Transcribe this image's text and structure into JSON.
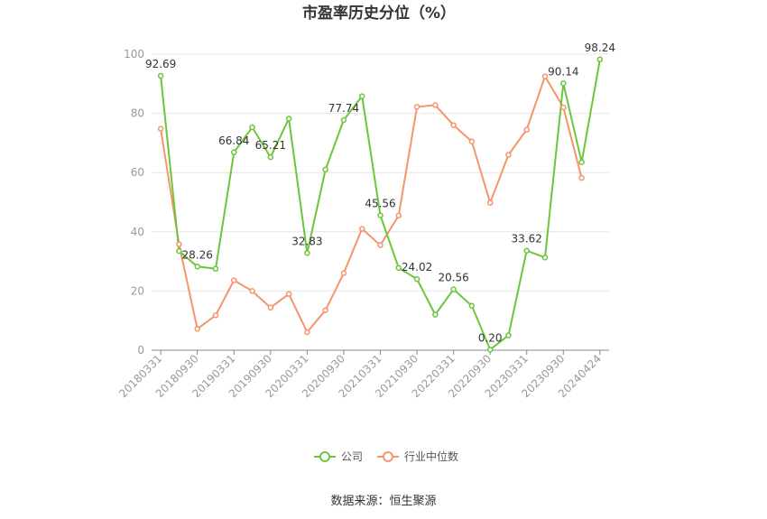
{
  "chart_data": {
    "type": "line",
    "title": "市盈率历史分位（%）",
    "xlabel": "",
    "ylabel": "",
    "ylim": [
      0,
      100
    ],
    "yticks": [
      0,
      20,
      40,
      60,
      80,
      100
    ],
    "grid": true,
    "legend_position": "bottom",
    "x": [
      "20180331",
      "20180630",
      "20180930",
      "20181231",
      "20190331",
      "20190630",
      "20190930",
      "20191231",
      "20200331",
      "20200630",
      "20200930",
      "20201231",
      "20210331",
      "20210630",
      "20210930",
      "20211231",
      "20220331",
      "20220630",
      "20220930",
      "20221231",
      "20230331",
      "20230630",
      "20230930",
      "20231231",
      "20240424"
    ],
    "xtick_labels": [
      "20180331",
      "20180930",
      "20190331",
      "20190930",
      "20200331",
      "20200930",
      "20210331",
      "20210930",
      "20220331",
      "20220930",
      "20230331",
      "20230930",
      "20240424"
    ],
    "xtick_indices": [
      0,
      2,
      4,
      6,
      8,
      10,
      12,
      14,
      16,
      18,
      20,
      22,
      24
    ],
    "series": [
      {
        "name": "公司",
        "color": "#6bc63c",
        "values": [
          92.69,
          33.5,
          28.26,
          27.5,
          66.84,
          75.3,
          65.21,
          78.2,
          32.83,
          61.0,
          77.74,
          85.8,
          45.56,
          27.8,
          24.02,
          12.0,
          20.56,
          15.0,
          0.2,
          5.0,
          33.62,
          31.3,
          90.14,
          63.5,
          98.24
        ],
        "labels": {
          "0": "92.69",
          "2": "28.26",
          "4": "66.84",
          "6": "65.21",
          "8": "32.83",
          "10": "77.74",
          "12": "45.56",
          "14": "24.02",
          "16": "20.56",
          "18": "0.20",
          "20": "33.62",
          "22": "90.14",
          "24": "98.24"
        }
      },
      {
        "name": "行业中位数",
        "color": "#f4956a",
        "values": [
          74.8,
          35.8,
          7.2,
          11.8,
          23.6,
          20.0,
          14.4,
          19.0,
          6.1,
          13.5,
          26.0,
          41.0,
          35.5,
          45.5,
          82.2,
          82.8,
          76.0,
          70.5,
          49.8,
          66.0,
          74.5,
          92.5,
          82.0,
          58.2,
          null
        ],
        "labels": {}
      }
    ]
  },
  "source": "数据来源：恒生聚源"
}
